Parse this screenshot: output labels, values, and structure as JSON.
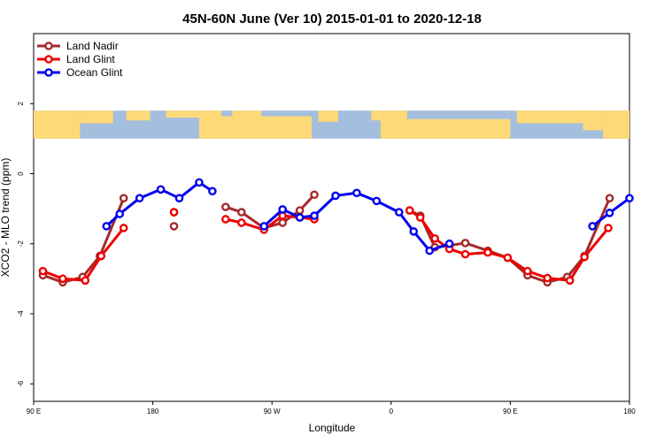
{
  "chart_data": {
    "type": "line",
    "title": "45N-60N June (Ver 10)   2015-01-01 to 2020-12-18",
    "xlabel": "Longitude",
    "ylabel": "XCO2 - MLO trend (ppm)",
    "x_ticks": [
      {
        "value": 90,
        "label": "90 E"
      },
      {
        "value": 180,
        "label": "180"
      },
      {
        "value": 270,
        "label": "90 W"
      },
      {
        "value": 360,
        "label": "0"
      },
      {
        "value": 450,
        "label": "90 E"
      },
      {
        "value": 540,
        "label": "180"
      }
    ],
    "y_ticks": [
      2,
      0,
      -2,
      -4,
      -6
    ],
    "xlim": [
      90,
      540
    ],
    "ylim": [
      -6.5,
      4
    ],
    "map_band": {
      "y_range": [
        1,
        1.8
      ],
      "ocean_color": "#a4bede",
      "land_color": "#fdd978"
    },
    "legend": {
      "position": "top-left"
    },
    "series": [
      {
        "name": "Land Nadir",
        "color": "#a52a2a",
        "segments": [
          [
            [
              97,
              -2.9
            ],
            [
              112,
              -3.1
            ],
            [
              127,
              -2.95
            ],
            [
              140,
              -2.35
            ],
            [
              158,
              -0.7
            ]
          ],
          [
            [
              196,
              -1.5
            ]
          ],
          [
            [
              235,
              -0.95
            ],
            [
              247,
              -1.1
            ],
            [
              264,
              -1.55
            ],
            [
              278,
              -1.4
            ],
            [
              291,
              -1.05
            ],
            [
              302,
              -0.6
            ]
          ],
          [
            [
              374,
              -1.05
            ],
            [
              382,
              -1.2
            ],
            [
              393,
              -2.1
            ],
            [
              404,
              -2.05
            ],
            [
              416,
              -1.98
            ],
            [
              433,
              -2.2
            ],
            [
              448,
              -2.4
            ],
            [
              463,
              -2.9
            ],
            [
              478,
              -3.1
            ],
            [
              493,
              -2.95
            ],
            [
              506,
              -2.35
            ],
            [
              525,
              -0.7
            ]
          ],
          [
            [
              196,
              -1.1
            ]
          ]
        ]
      },
      {
        "name": "Land Glint",
        "color": "#ee0000",
        "segments": [
          [
            [
              97,
              -2.78
            ],
            [
              112,
              -3.0
            ],
            [
              129,
              -3.05
            ],
            [
              141,
              -2.35
            ],
            [
              158,
              -1.55
            ]
          ],
          [
            [
              196,
              -1.1
            ]
          ],
          [
            [
              235,
              -1.3
            ],
            [
              247,
              -1.4
            ],
            [
              264,
              -1.6
            ],
            [
              278,
              -1.2
            ],
            [
              291,
              -1.25
            ],
            [
              302,
              -1.3
            ]
          ],
          [
            [
              374,
              -1.05
            ],
            [
              382,
              -1.25
            ],
            [
              393,
              -1.85
            ],
            [
              404,
              -2.15
            ],
            [
              416,
              -2.3
            ],
            [
              433,
              -2.25
            ],
            [
              448,
              -2.4
            ],
            [
              463,
              -2.78
            ],
            [
              478,
              -2.98
            ],
            [
              495,
              -3.05
            ],
            [
              506,
              -2.38
            ],
            [
              524,
              -1.55
            ]
          ]
        ]
      },
      {
        "name": "Ocean Glint",
        "color": "#0000ee",
        "segments": [
          [
            [
              145,
              -1.5
            ],
            [
              155,
              -1.15
            ],
            [
              170,
              -0.7
            ],
            [
              186,
              -0.45
            ],
            [
              200,
              -0.7
            ],
            [
              215,
              -0.25
            ],
            [
              225,
              -0.5
            ]
          ],
          [
            [
              264,
              -1.5
            ],
            [
              278,
              -1.02
            ],
            [
              291,
              -1.25
            ],
            [
              302,
              -1.2
            ],
            [
              318,
              -0.63
            ],
            [
              334,
              -0.55
            ],
            [
              349,
              -0.78
            ],
            [
              366,
              -1.1
            ],
            [
              377,
              -1.65
            ],
            [
              389,
              -2.2
            ],
            [
              404,
              -2.0
            ]
          ],
          [
            [
              512,
              -1.5
            ],
            [
              525,
              -1.12
            ],
            [
              540,
              -0.7
            ]
          ]
        ]
      }
    ]
  }
}
